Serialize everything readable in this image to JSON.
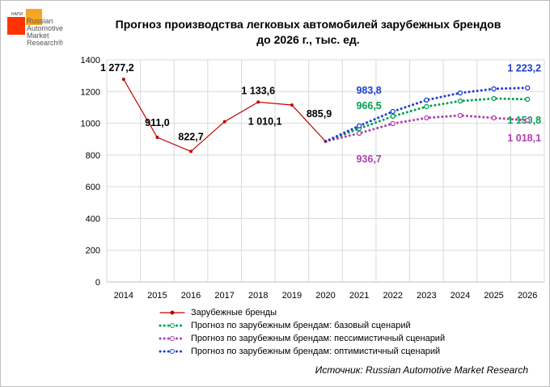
{
  "logo": {
    "small": "НАПИ",
    "lines": [
      "Russian",
      "Automotive",
      "Market",
      "Research"
    ],
    "mark": "®"
  },
  "chart_data": {
    "type": "line",
    "title": "Прогноз производства легковых автомобилей зарубежных брендов до 2026 г., тыс. ед.",
    "title_lines": [
      "Прогноз производства легковых автомобилей зарубежных брендов",
      "до 2026 г., тыс. ед."
    ],
    "categories": [
      "2014",
      "2015",
      "2016",
      "2017",
      "2018",
      "2019",
      "2020",
      "2021",
      "2022",
      "2023",
      "2024",
      "2025",
      "2026"
    ],
    "ylim": [
      0,
      1400
    ],
    "yticks": [
      "0",
      "200",
      "400",
      "600",
      "800",
      "1000",
      "1200",
      "1400"
    ],
    "grid": true,
    "legend_position": "bottom",
    "series": [
      {
        "name": "Зарубежные бренды",
        "color": "#c00000",
        "style": "solid",
        "values": [
          1277.2,
          911.0,
          822.7,
          1010.1,
          1133.6,
          1115,
          885.9,
          null,
          null,
          null,
          null,
          null,
          null
        ],
        "labels": [
          {
            "i": 0,
            "text": "1 277,2"
          },
          {
            "i": 1,
            "text": "911,0"
          },
          {
            "i": 2,
            "text": "822,7"
          },
          {
            "i": 3,
            "text": "1 010,1"
          },
          {
            "i": 4,
            "text": "1 133,6"
          },
          {
            "i": 6,
            "text": "885,9"
          }
        ]
      },
      {
        "name": "Прогноз по зарубежным брендам: базовый сценарий",
        "color": "#00a050",
        "style": "dotted",
        "values": [
          null,
          null,
          null,
          null,
          null,
          null,
          885.9,
          966.5,
          1044,
          1105,
          1140,
          1156,
          1150.8
        ],
        "labels": [
          {
            "i": 7,
            "text": "966,5"
          },
          {
            "i": 12,
            "text": "1 150,8"
          }
        ]
      },
      {
        "name": "Прогноз по зарубежным брендам: пессимистичный сценарий",
        "color": "#b040b0",
        "style": "dotted",
        "values": [
          null,
          null,
          null,
          null,
          null,
          null,
          885.9,
          936.7,
          998,
          1034,
          1049,
          1034,
          1018.1
        ],
        "labels": [
          {
            "i": 7,
            "text": "936,7"
          },
          {
            "i": 12,
            "text": "1 018,1"
          }
        ]
      },
      {
        "name": "Прогноз по зарубежным брендам: оптимистичный сценарий",
        "color": "#1f3fcc",
        "style": "dotted",
        "values": [
          null,
          null,
          null,
          null,
          null,
          null,
          885.9,
          983.8,
          1074,
          1146,
          1191,
          1217,
          1223.2
        ],
        "labels": [
          {
            "i": 7,
            "text": "983,8"
          },
          {
            "i": 12,
            "text": "1 223,2"
          }
        ]
      }
    ]
  },
  "source": "Источник: Russian Automotive Market Research"
}
